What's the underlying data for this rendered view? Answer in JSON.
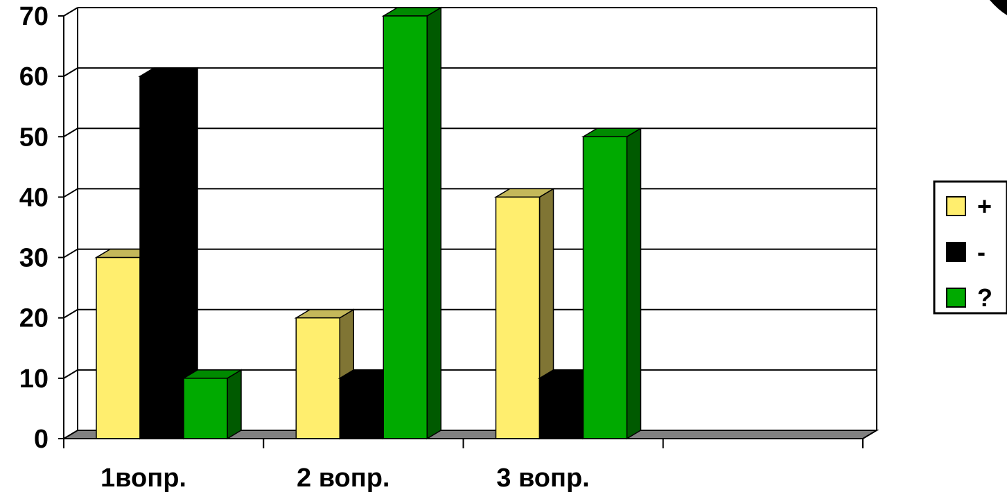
{
  "chart_data": {
    "type": "bar",
    "categories": [
      "1вопр.",
      "2 вопр.",
      "3 вопр.",
      ""
    ],
    "series": [
      {
        "name": "+",
        "values": [
          30,
          20,
          40,
          null
        ],
        "color": "#FFEE6E",
        "side": "#807534",
        "top": "#C4B85A"
      },
      {
        "name": "-",
        "values": [
          60,
          10,
          10,
          null
        ],
        "color": "#000000",
        "side": "#000000",
        "top": "#000000"
      },
      {
        "name": "?",
        "values": [
          10,
          70,
          50,
          null
        ],
        "color": "#00AA00",
        "side": "#005A00",
        "top": "#008A00"
      }
    ],
    "ylim": [
      0,
      70
    ],
    "yticks": [
      0,
      10,
      20,
      30,
      40,
      50,
      60,
      70
    ],
    "title": "",
    "xlabel": "",
    "ylabel": "",
    "grid": true,
    "legend": "right",
    "floor_color": "#808080"
  }
}
